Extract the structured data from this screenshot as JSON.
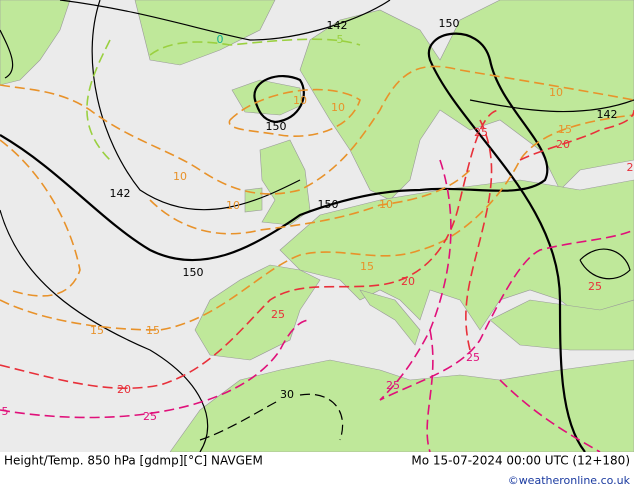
{
  "footer": {
    "title": "Height/Temp. 850 hPa [gdmp][°C] NAVGEM",
    "valid_time": "Mo 15-07-2024 00:00 UTC (12+180)",
    "credit": "©weatheronline.co.uk"
  },
  "contour_labels": [
    "142",
    "150",
    "150",
    "142",
    "150",
    "150",
    "142",
    "10",
    "10",
    "10",
    "10",
    "10",
    "10",
    "15",
    "15",
    "15",
    "15",
    "20",
    "20",
    "20",
    "25",
    "25",
    "25",
    "25",
    "25",
    "25",
    "30",
    "0",
    "5",
    "5",
    "2"
  ]
}
